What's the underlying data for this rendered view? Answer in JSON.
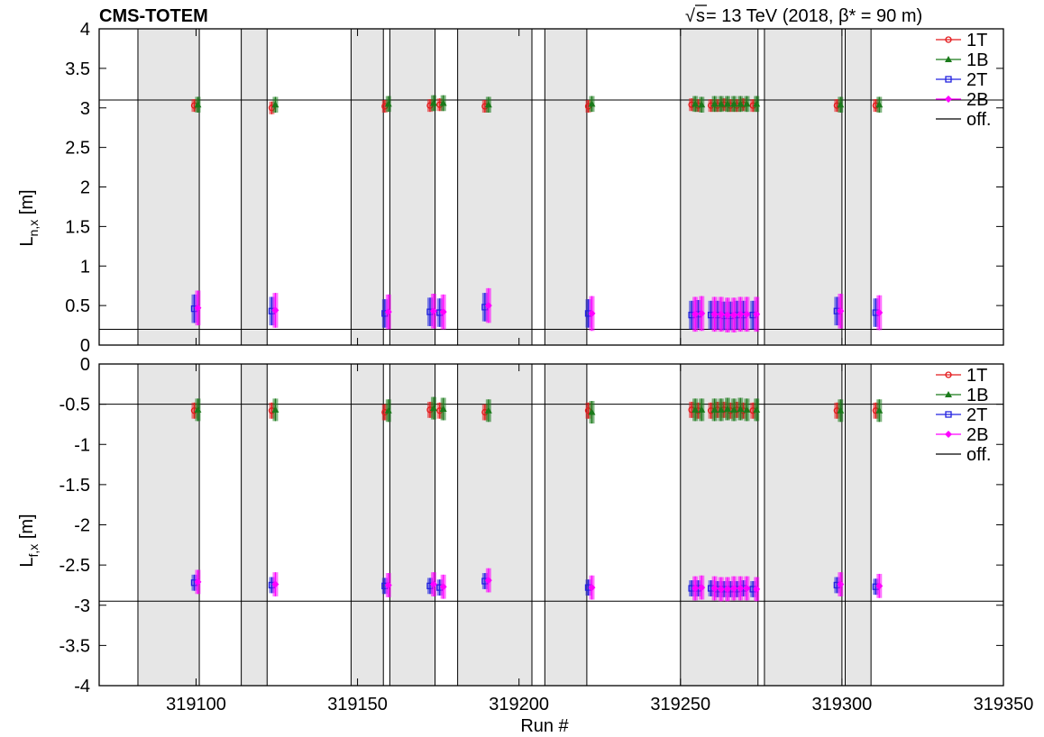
{
  "header": {
    "collab": "CMS-TOTEM",
    "energy_pre": "s",
    "energy_post": " = 13 TeV (2018, β* = 90 m)"
  },
  "colors": {
    "1T": "#e41a1c",
    "1B": "#1a7a1a",
    "2T": "#2222e0",
    "2B": "#ff00ff",
    "off": "#000000",
    "band": "#e6e6e6"
  },
  "chart_data": [
    {
      "type": "scatter",
      "ylabel_main": "L",
      "ylabel_sub": "n,x",
      "ylabel_unit": " [m]",
      "xlim": [
        319070,
        319350
      ],
      "ylim": [
        0,
        4
      ],
      "x_ticks": [
        "319100",
        "319150",
        "319200",
        "319250",
        "319300",
        "319350"
      ],
      "y_ticks": [
        "0",
        "0.5",
        "1",
        "1.5",
        "2",
        "2.5",
        "3",
        "3.5",
        "4"
      ],
      "legend": [
        "1T",
        "1B",
        "2T",
        "2B",
        "off."
      ],
      "legend_position": "top-right",
      "fills": [
        [
          319082,
          319101
        ],
        [
          319114,
          319122
        ],
        [
          319148,
          319158
        ],
        [
          319160,
          319174
        ],
        [
          319181,
          319204
        ],
        [
          319208,
          319221
        ],
        [
          319250,
          319274
        ],
        [
          319276,
          319300
        ],
        [
          319301,
          319309
        ]
      ],
      "lines": [
        319082,
        319101,
        319114,
        319122,
        319148,
        319158,
        319160,
        319174,
        319181,
        319204,
        319208,
        319221,
        319250,
        319274,
        319276,
        319300,
        319301,
        319309
      ],
      "offsets": [
        3.1,
        0.2
      ],
      "runs": [
        319100,
        319124,
        319159,
        319173,
        319176,
        319190,
        319222,
        319254,
        319256,
        319260,
        319262,
        319264,
        319266,
        319268,
        319270,
        319273,
        319299,
        319311
      ],
      "series": [
        {
          "name": "1T",
          "values": [
            3.03,
            3.0,
            3.02,
            3.03,
            3.04,
            3.02,
            3.02,
            3.04,
            3.03,
            3.03,
            3.03,
            3.04,
            3.03,
            3.03,
            3.04,
            3.03,
            3.03,
            3.03
          ],
          "err": 0.08
        },
        {
          "name": "1B",
          "values": [
            3.04,
            3.04,
            3.05,
            3.06,
            3.06,
            3.04,
            3.05,
            3.05,
            3.04,
            3.05,
            3.05,
            3.05,
            3.05,
            3.05,
            3.05,
            3.05,
            3.04,
            3.04
          ],
          "err": 0.1
        },
        {
          "name": "2T",
          "values": [
            0.46,
            0.43,
            0.4,
            0.42,
            0.41,
            0.48,
            0.4,
            0.38,
            0.39,
            0.38,
            0.38,
            0.37,
            0.37,
            0.38,
            0.38,
            0.38,
            0.43,
            0.41
          ],
          "err": 0.18
        },
        {
          "name": "2B",
          "values": [
            0.47,
            0.44,
            0.42,
            0.43,
            0.42,
            0.5,
            0.4,
            0.39,
            0.4,
            0.39,
            0.39,
            0.38,
            0.38,
            0.39,
            0.39,
            0.39,
            0.43,
            0.41
          ],
          "err": 0.22
        }
      ]
    },
    {
      "type": "scatter",
      "ylabel_main": "L",
      "ylabel_sub": "f,x",
      "ylabel_unit": " [m]",
      "xlabel": "Run #",
      "xlim": [
        319070,
        319350
      ],
      "ylim": [
        -4,
        0
      ],
      "x_ticks": [
        "319100",
        "319150",
        "319200",
        "319250",
        "319300",
        "319350"
      ],
      "y_ticks": [
        "-4",
        "-3.5",
        "-3",
        "-2.5",
        "-2",
        "-1.5",
        "-1",
        "-0.5",
        "0"
      ],
      "legend": [
        "1T",
        "1B",
        "2T",
        "2B",
        "off."
      ],
      "legend_position": "top-right",
      "fills": [
        [
          319082,
          319101
        ],
        [
          319114,
          319122
        ],
        [
          319148,
          319158
        ],
        [
          319160,
          319174
        ],
        [
          319181,
          319204
        ],
        [
          319208,
          319221
        ],
        [
          319250,
          319274
        ],
        [
          319276,
          319300
        ],
        [
          319301,
          319309
        ]
      ],
      "lines": [
        319082,
        319101,
        319114,
        319122,
        319148,
        319158,
        319160,
        319174,
        319181,
        319204,
        319208,
        319221,
        319250,
        319274,
        319276,
        319300,
        319301,
        319309
      ],
      "offsets": [
        -0.5,
        -2.95
      ],
      "runs": [
        319100,
        319124,
        319159,
        319173,
        319176,
        319190,
        319222,
        319254,
        319256,
        319260,
        319262,
        319264,
        319266,
        319268,
        319270,
        319273,
        319299,
        319311
      ],
      "series": [
        {
          "name": "1T",
          "values": [
            -0.58,
            -0.58,
            -0.6,
            -0.57,
            -0.58,
            -0.6,
            -0.58,
            -0.57,
            -0.58,
            -0.58,
            -0.57,
            -0.57,
            -0.58,
            -0.57,
            -0.58,
            -0.58,
            -0.58,
            -0.58
          ],
          "err": 0.1
        },
        {
          "name": "1B",
          "values": [
            -0.57,
            -0.57,
            -0.58,
            -0.55,
            -0.56,
            -0.58,
            -0.6,
            -0.57,
            -0.57,
            -0.57,
            -0.57,
            -0.56,
            -0.57,
            -0.56,
            -0.57,
            -0.57,
            -0.58,
            -0.58
          ],
          "err": 0.14
        },
        {
          "name": "2T",
          "values": [
            -2.72,
            -2.75,
            -2.76,
            -2.76,
            -2.78,
            -2.7,
            -2.78,
            -2.79,
            -2.79,
            -2.79,
            -2.8,
            -2.8,
            -2.8,
            -2.8,
            -2.79,
            -2.8,
            -2.75,
            -2.77
          ],
          "err": 0.1
        },
        {
          "name": "2B",
          "values": [
            -2.71,
            -2.74,
            -2.75,
            -2.74,
            -2.77,
            -2.69,
            -2.78,
            -2.79,
            -2.78,
            -2.79,
            -2.8,
            -2.8,
            -2.79,
            -2.79,
            -2.79,
            -2.8,
            -2.74,
            -2.76
          ],
          "err": 0.15
        }
      ]
    }
  ]
}
